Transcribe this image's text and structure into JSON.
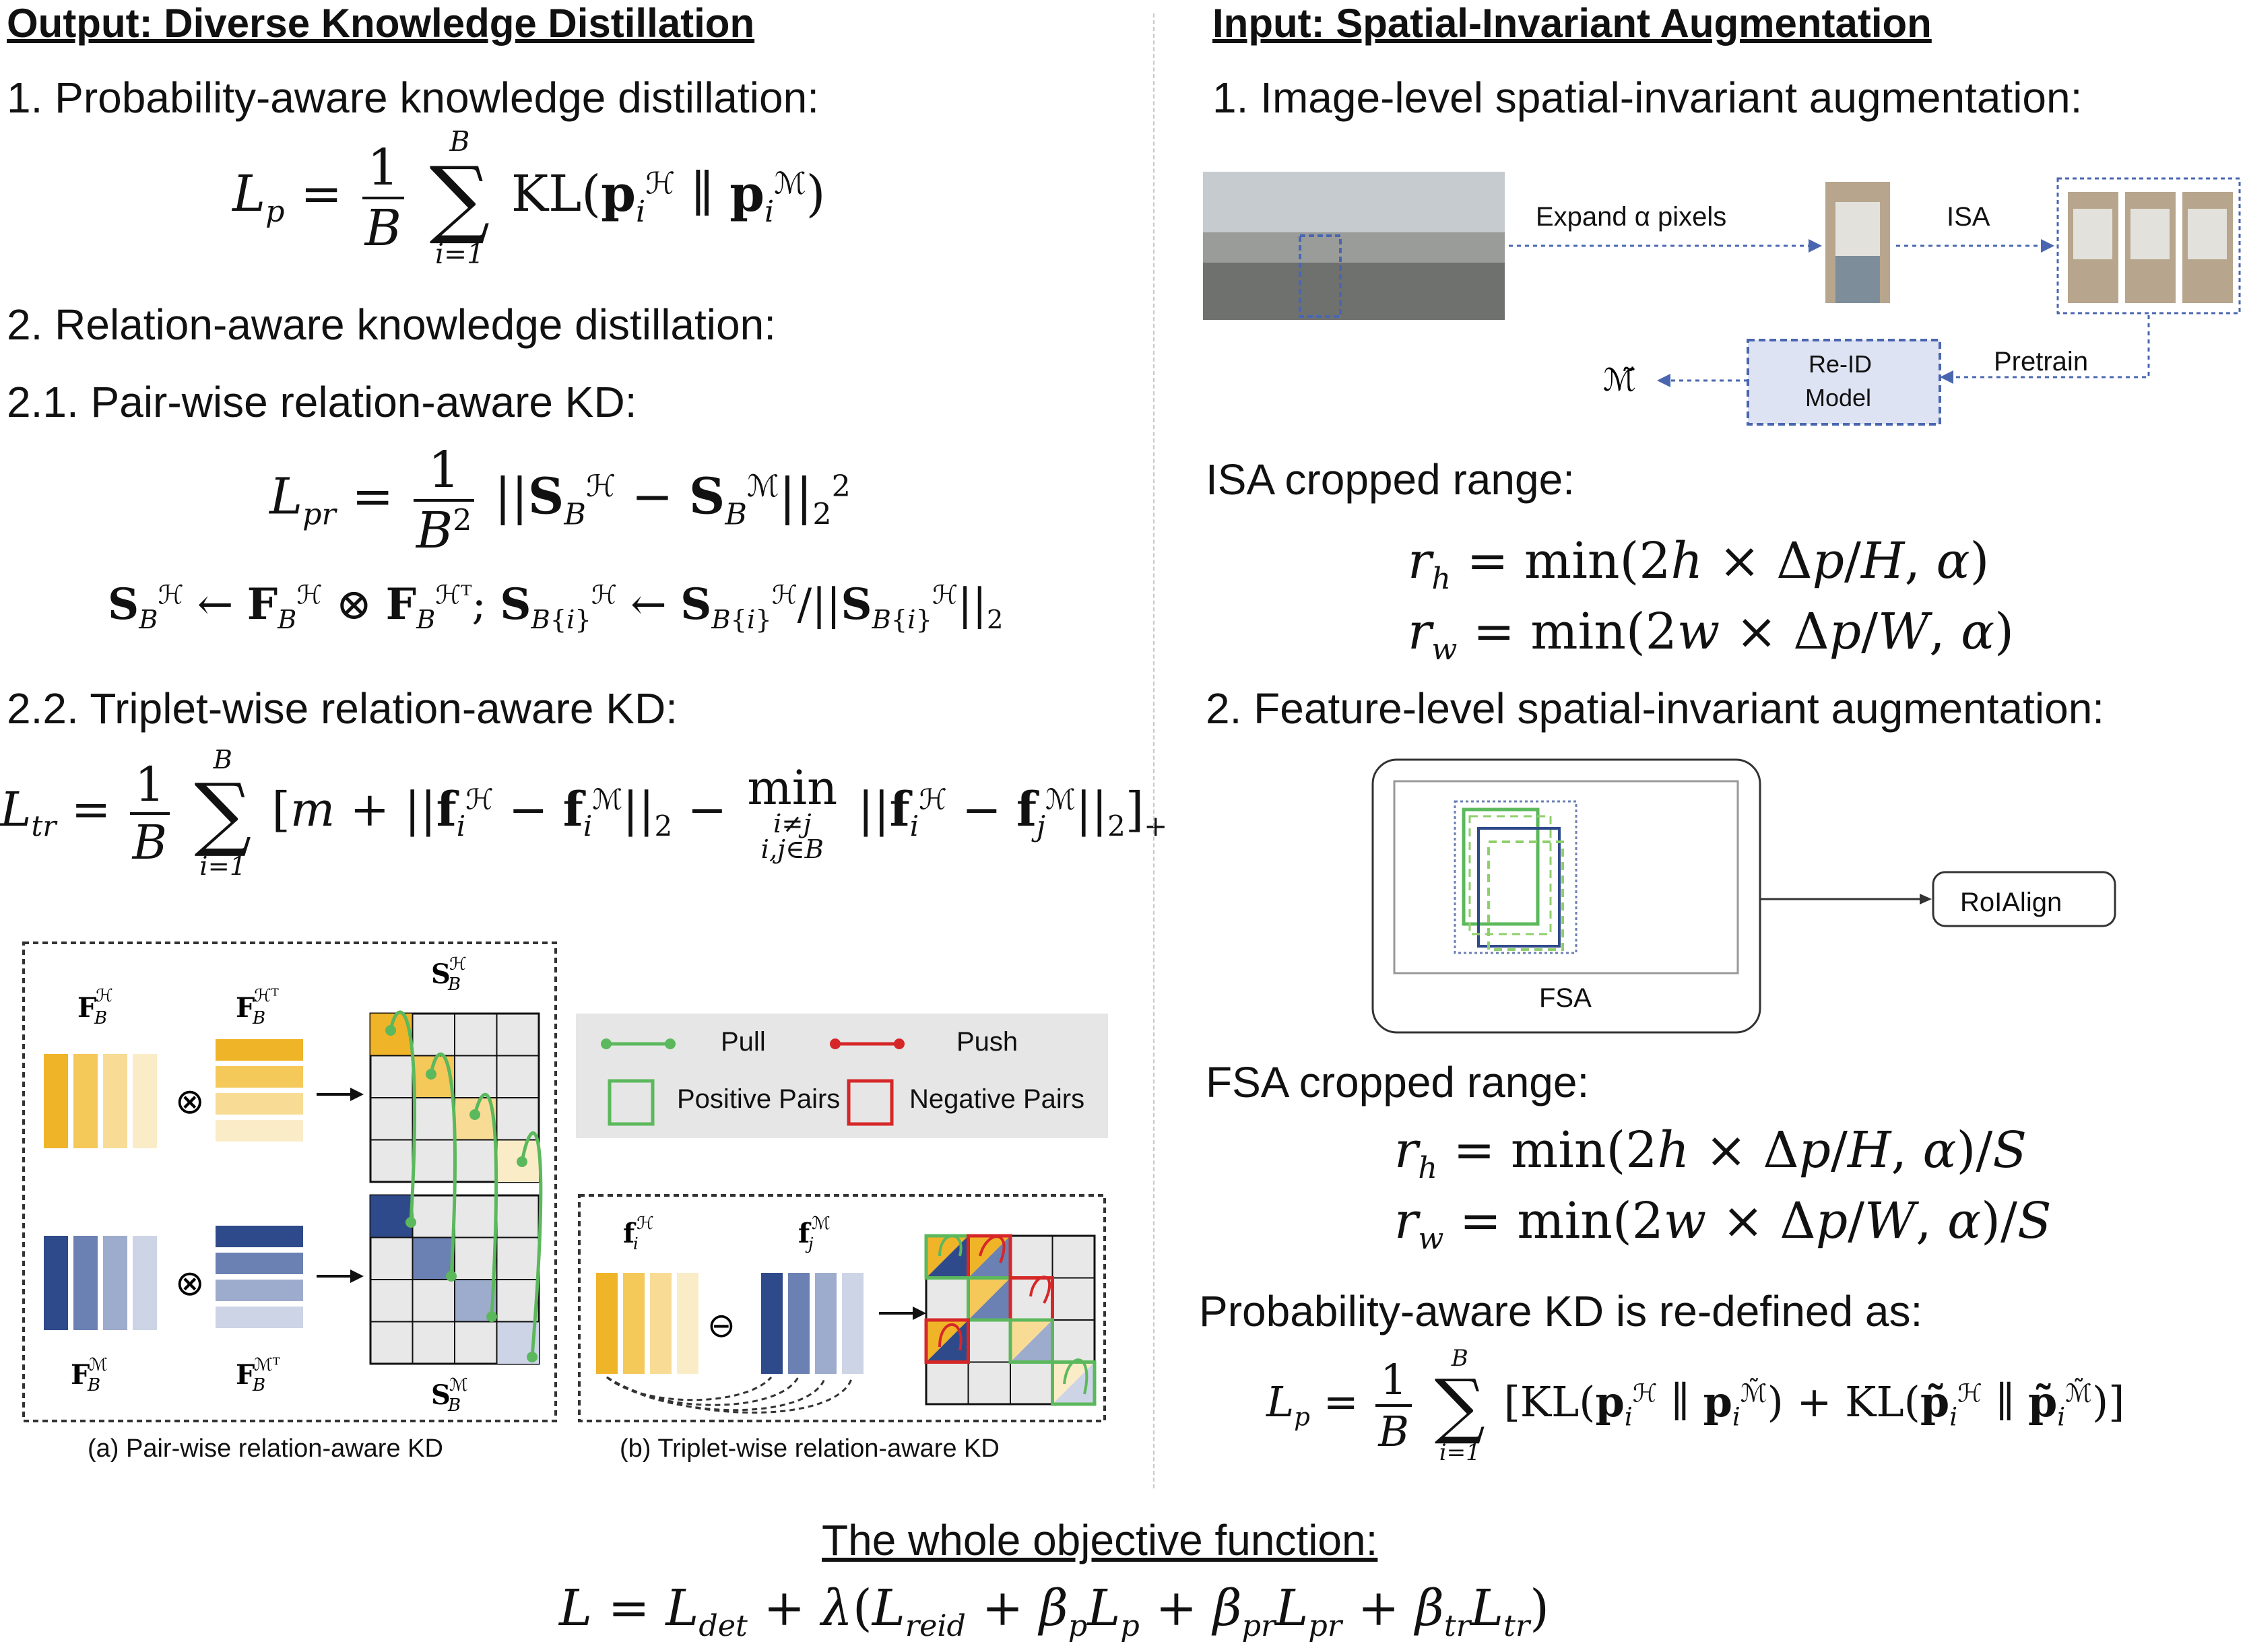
{
  "left": {
    "title": "Output: Diverse Knowledge Distillation",
    "step1": "1. Probability-aware knowledge distillation:",
    "step2": "2. Relation-aware knowledge distillation:",
    "step21": "2.1. Pair-wise relation-aware KD:",
    "step22": "2.2. Triplet-wise relation-aware KD:",
    "caption_a": "(a) Pair-wise relation-aware KD",
    "caption_b": "(b) Triplet-wise relation-aware KD",
    "legend": {
      "pull": "Pull",
      "push": "Push",
      "positive": "Positive Pairs",
      "negative": "Negative Pairs"
    }
  },
  "right": {
    "title": "Input: Spatial-Invariant Augmentation",
    "step1": "1. Image-level spatial-invariant augmentation:",
    "expand_label": "Expand α pixels",
    "isa_label": "ISA",
    "pretrain_label": "Pretrain",
    "reid_line1": "Re-ID",
    "reid_line2": "Model",
    "isa_range": "ISA cropped range:",
    "step2": "2. Feature-level spatial-invariant augmentation:",
    "fsa_label": "FSA",
    "roialign_label": "RoIAlign",
    "fsa_range": "FSA cropped range:",
    "redefined": "Probability-aware KD is re-defined as:"
  },
  "bottom": {
    "title": "The whole objective function:"
  },
  "colors": {
    "yellow": "#f0b429",
    "navy": "#2f4a8a",
    "green": "#5cb85c",
    "red": "#d62728",
    "box_blue": "#dde3f3",
    "dash_blue": "#4a66b0"
  }
}
